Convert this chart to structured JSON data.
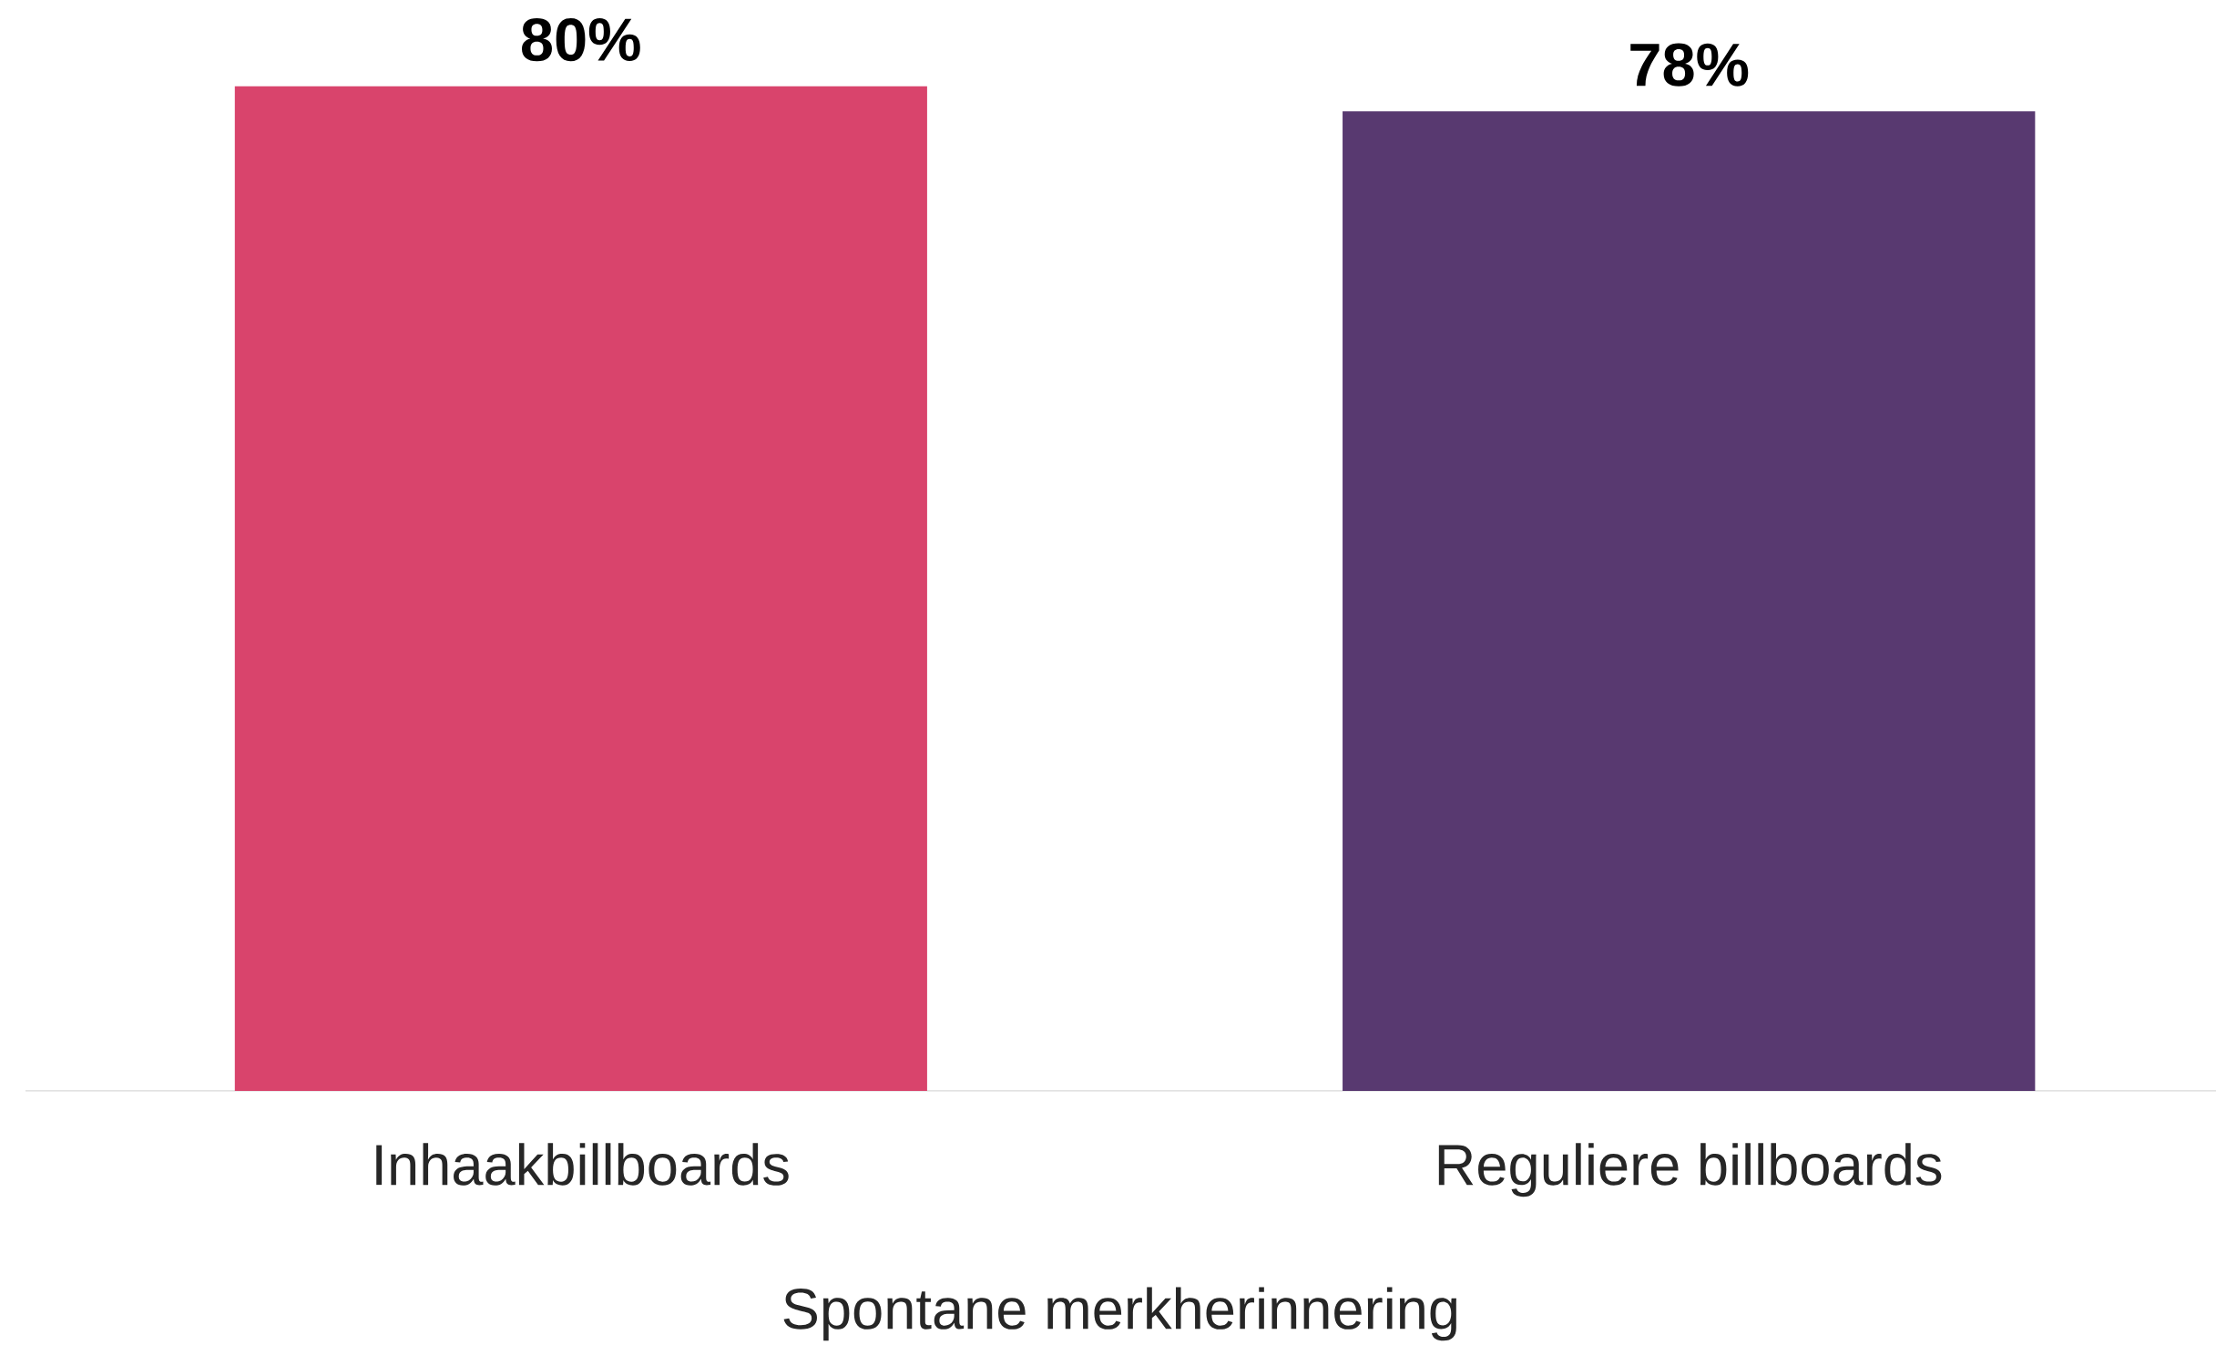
{
  "chart_data": {
    "type": "bar",
    "xlabel": "Spontane merkherinnering",
    "categories": [
      "Inhaakbillboards",
      "Reguliere billboards"
    ],
    "values": [
      80,
      78
    ],
    "value_labels": [
      "80%",
      "78%"
    ],
    "colors": [
      "#d9446c",
      "#583970"
    ]
  }
}
